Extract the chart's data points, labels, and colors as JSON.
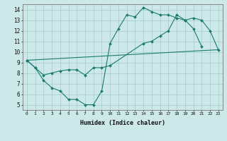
{
  "xlabel": "Humidex (Indice chaleur)",
  "bg_color": "#cce8e8",
  "grid_color": "#aacfcf",
  "line_color": "#1a7a6e",
  "xlim": [
    -0.5,
    23.5
  ],
  "ylim": [
    4.5,
    14.5
  ],
  "xticks": [
    0,
    1,
    2,
    3,
    4,
    5,
    6,
    7,
    8,
    9,
    10,
    11,
    12,
    13,
    14,
    15,
    16,
    17,
    18,
    19,
    20,
    21,
    22,
    23
  ],
  "yticks": [
    5,
    6,
    7,
    8,
    9,
    10,
    11,
    12,
    13,
    14
  ],
  "line1_x": [
    0,
    1,
    2,
    3,
    4,
    5,
    6,
    7,
    8,
    9,
    10,
    11,
    12,
    13,
    14,
    15,
    16,
    17,
    18,
    19,
    20,
    21
  ],
  "line1_y": [
    9.2,
    8.5,
    7.3,
    6.6,
    6.3,
    5.5,
    5.5,
    5.0,
    5.0,
    6.3,
    10.8,
    12.2,
    13.5,
    13.3,
    14.2,
    13.8,
    13.5,
    13.5,
    13.2,
    13.0,
    12.2,
    10.5
  ],
  "line2_x": [
    0,
    1,
    2,
    3,
    4,
    5,
    6,
    7,
    8,
    9,
    10,
    14,
    15,
    16,
    17,
    18,
    19,
    20,
    21,
    22,
    23
  ],
  "line2_y": [
    9.2,
    8.5,
    7.8,
    8.0,
    8.2,
    8.3,
    8.3,
    7.8,
    8.5,
    8.5,
    8.7,
    10.8,
    11.0,
    11.5,
    12.0,
    13.5,
    13.0,
    13.2,
    13.0,
    12.0,
    10.2
  ],
  "line3_x": [
    0,
    23
  ],
  "line3_y": [
    9.2,
    10.2
  ]
}
